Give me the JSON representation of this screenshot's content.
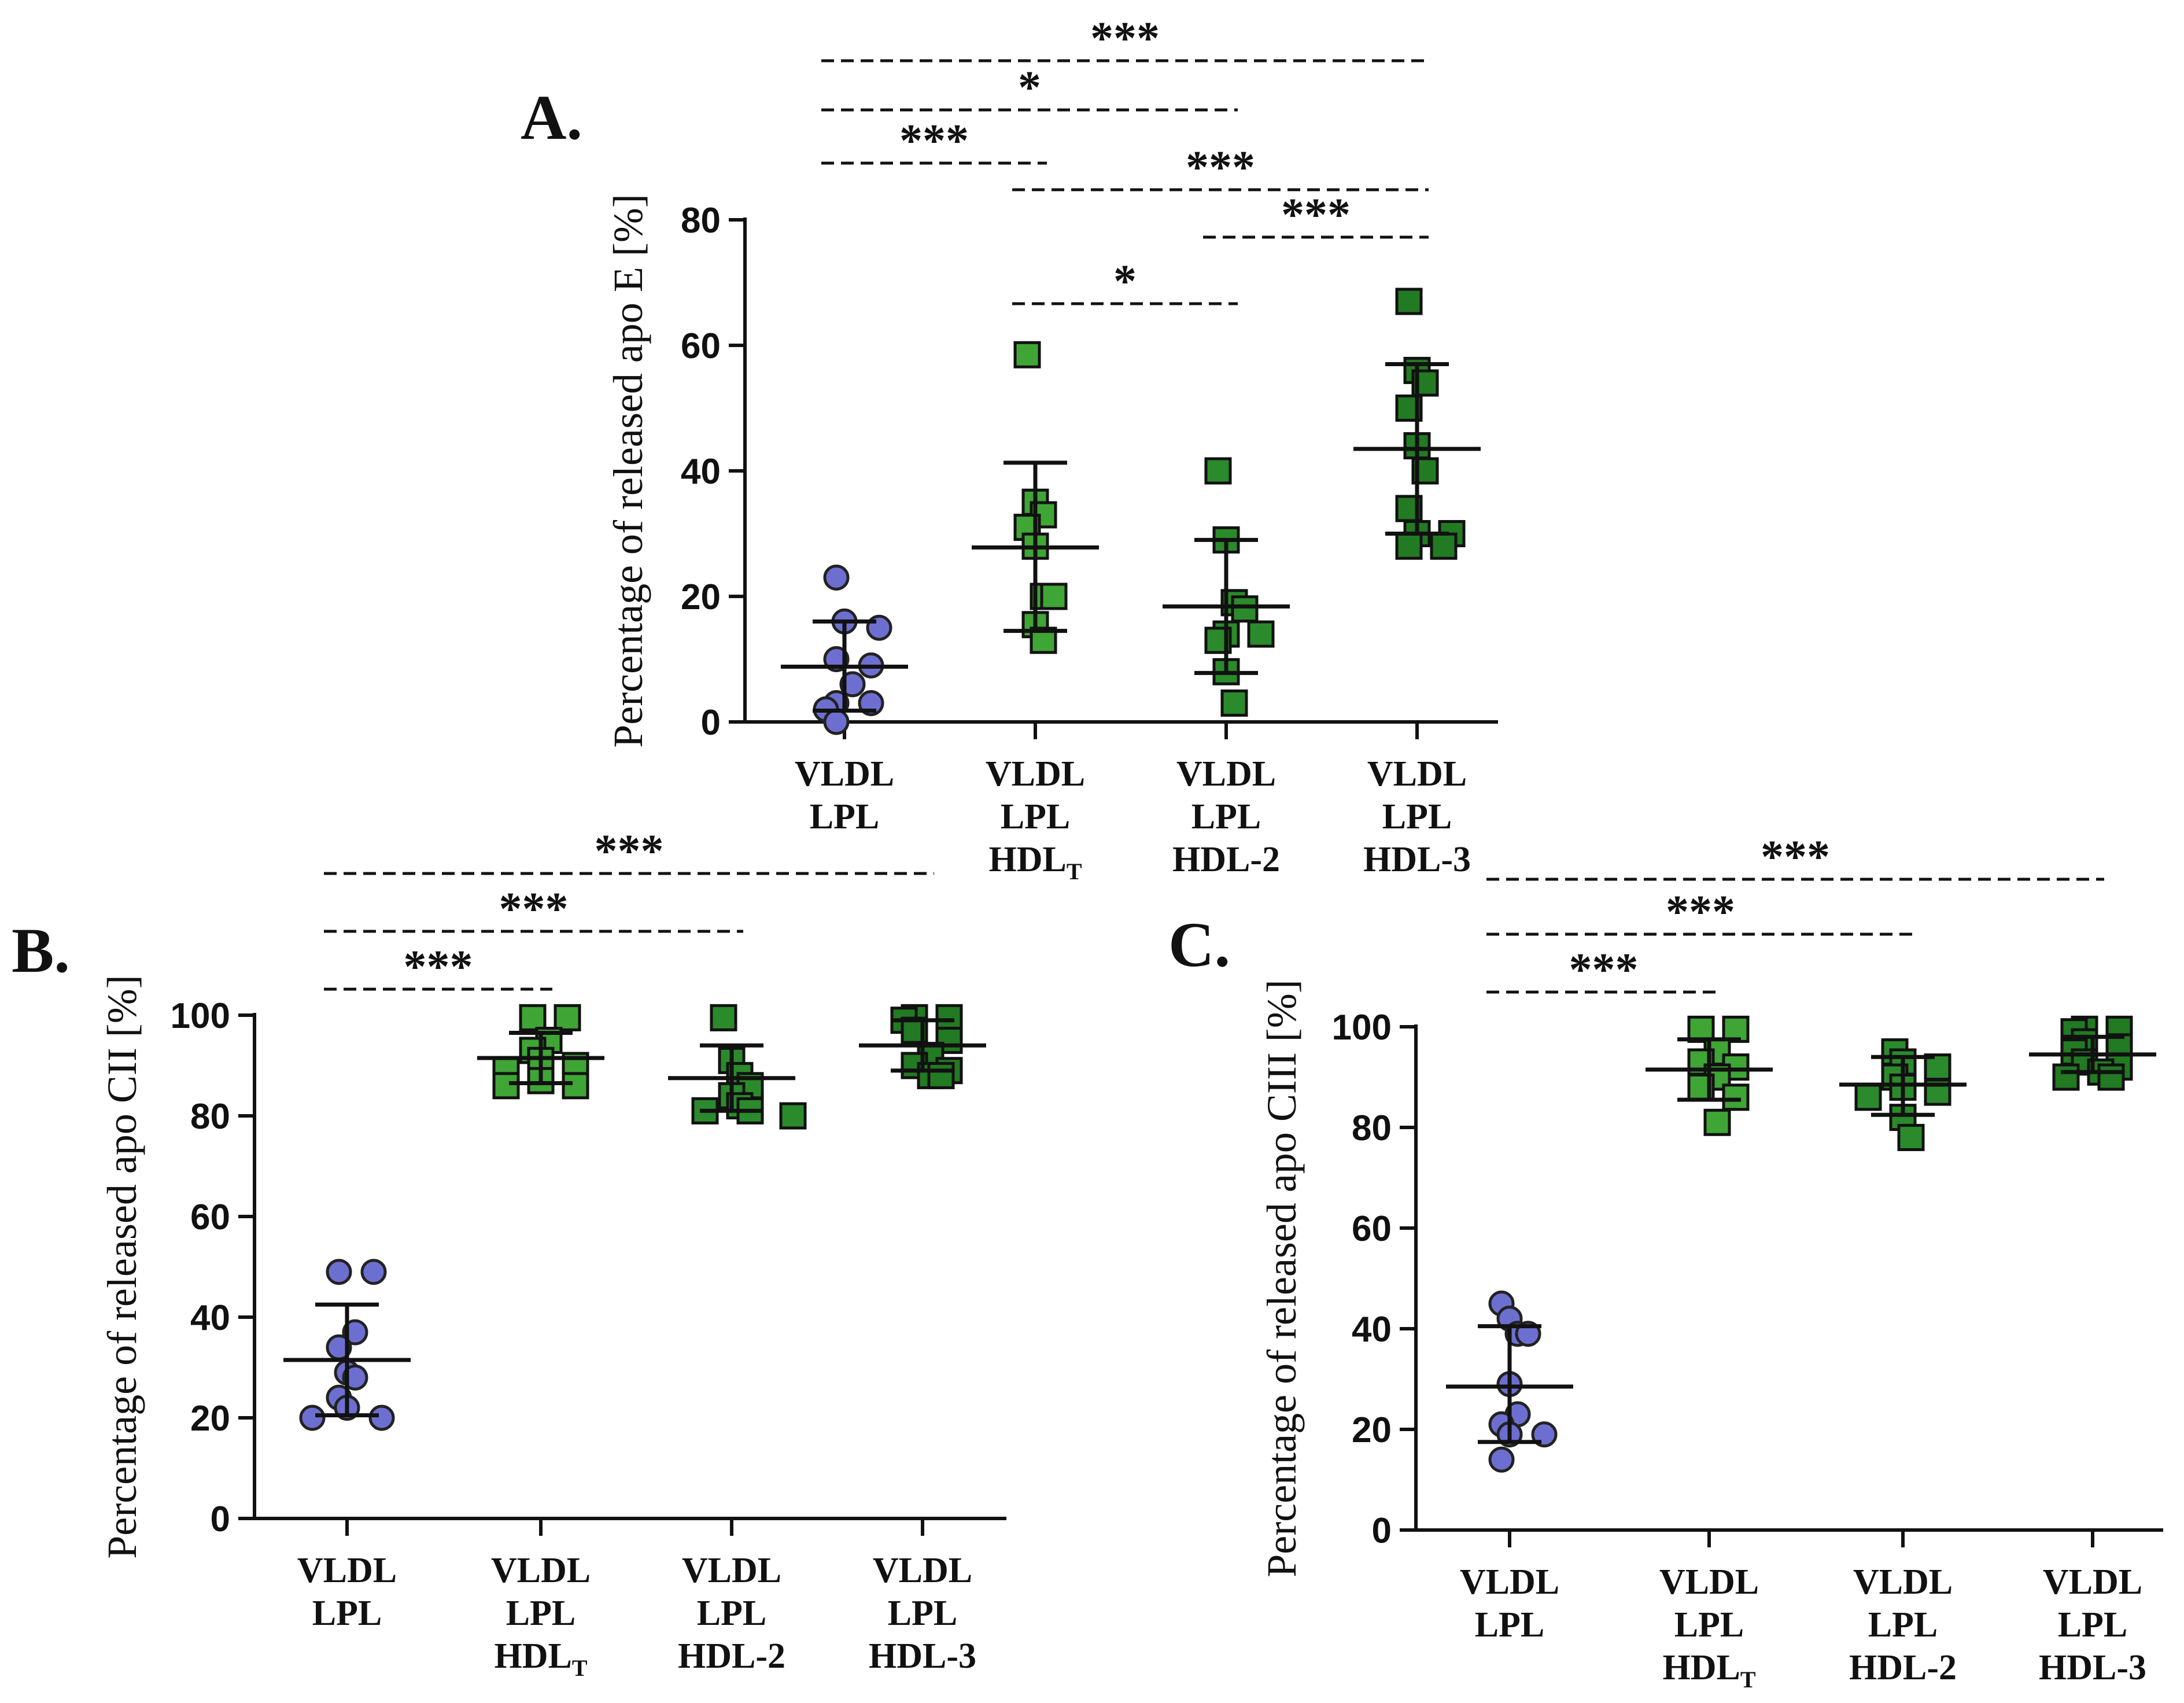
{
  "chart_data": [
    {
      "panel": "A.",
      "type": "scatter",
      "ylabel": "Percentage of released apo E [%]",
      "ylim": [
        0,
        80
      ],
      "yticks": [
        "0",
        "20",
        "40",
        "60",
        "80"
      ],
      "groups": [
        {
          "lines": [
            "VLDL",
            "LPL"
          ],
          "sub": "",
          "marker": "circle",
          "color": "#6d6fd0",
          "mean": 8.8,
          "sd_low": 1.8,
          "sd_high": 16.0,
          "values": [
            23,
            16,
            15,
            10,
            9,
            6,
            3,
            3,
            2,
            0
          ]
        },
        {
          "lines": [
            "VLDL",
            "LPL",
            "HDL"
          ],
          "sub": "T",
          "marker": "square",
          "color": "#3fa535",
          "mean": 27.8,
          "sd_low": 14.5,
          "sd_high": 41.3,
          "values": [
            58.5,
            35,
            33,
            31,
            28,
            20,
            20,
            15.5,
            13
          ]
        },
        {
          "lines": [
            "VLDL",
            "LPL",
            "HDL-2"
          ],
          "sub": "",
          "marker": "square",
          "color": "#2b8a2b",
          "mean": 18.4,
          "sd_low": 7.8,
          "sd_high": 29.0,
          "values": [
            40,
            29,
            19,
            18,
            14,
            14,
            13,
            8,
            3
          ]
        },
        {
          "lines": [
            "VLDL",
            "LPL",
            "HDL-3"
          ],
          "sub": "",
          "marker": "square",
          "color": "#227a22",
          "mean": 43.5,
          "sd_low": 30.0,
          "sd_high": 57.0,
          "values": [
            67,
            56,
            54,
            50,
            44,
            40,
            34,
            30,
            30,
            28,
            28
          ]
        }
      ],
      "significance": [
        {
          "from": 0,
          "to": 3,
          "label": "***"
        },
        {
          "from": 0,
          "to": 2,
          "label": "*"
        },
        {
          "from": 0,
          "to": 1,
          "label": "***"
        },
        {
          "from": 1,
          "to": 3,
          "label": "***"
        },
        {
          "from": 2,
          "to": 3,
          "label": "***"
        },
        {
          "from": 1,
          "to": 2,
          "label": "*"
        }
      ]
    },
    {
      "panel": "B.",
      "type": "scatter",
      "ylabel": "Percentage of released apo CII [%]",
      "ylim": [
        0,
        100
      ],
      "yticks": [
        "0",
        "20",
        "40",
        "60",
        "80",
        "100"
      ],
      "groups": [
        {
          "lines": [
            "VLDL",
            "LPL"
          ],
          "sub": "",
          "marker": "circle",
          "color": "#6d6fd0",
          "mean": 31.5,
          "sd_low": 20.5,
          "sd_high": 42.5,
          "values": [
            49,
            49,
            37,
            34,
            29,
            28,
            24,
            22,
            20,
            20
          ]
        },
        {
          "lines": [
            "VLDL",
            "LPL",
            "HDL"
          ],
          "sub": "T",
          "marker": "square",
          "color": "#3fa535",
          "mean": 91.5,
          "sd_low": 86.5,
          "sd_high": 96.5,
          "values": [
            99.5,
            99.5,
            95,
            93,
            91,
            90,
            89,
            87,
            86,
            86
          ]
        },
        {
          "lines": [
            "VLDL",
            "LPL",
            "HDL-2"
          ],
          "sub": "",
          "marker": "square",
          "color": "#2b8a2b",
          "mean": 87.5,
          "sd_low": 81,
          "sd_high": 94,
          "values": [
            99.5,
            91,
            88,
            86,
            84,
            82,
            81,
            81,
            80
          ]
        },
        {
          "lines": [
            "VLDL",
            "LPL",
            "HDL-3"
          ],
          "sub": "",
          "marker": "square",
          "color": "#227a22",
          "mean": 94,
          "sd_low": 89,
          "sd_high": 99,
          "values": [
            99.5,
            99.5,
            99,
            97,
            95,
            92,
            90,
            89,
            88,
            88
          ]
        }
      ],
      "significance": [
        {
          "from": 0,
          "to": 3,
          "label": "***"
        },
        {
          "from": 0,
          "to": 2,
          "label": "***"
        },
        {
          "from": 0,
          "to": 1,
          "label": "***"
        }
      ]
    },
    {
      "panel": "C.",
      "type": "scatter",
      "ylabel": "Percentage of released apo CIII [%]",
      "ylim": [
        0,
        100
      ],
      "yticks": [
        "0",
        "20",
        "40",
        "60",
        "80",
        "100"
      ],
      "groups": [
        {
          "lines": [
            "VLDL",
            "LPL"
          ],
          "sub": "",
          "marker": "circle",
          "color": "#6d6fd0",
          "mean": 28.5,
          "sd_low": 17.5,
          "sd_high": 40.5,
          "values": [
            45,
            42,
            39,
            39,
            29,
            23,
            21,
            19,
            19,
            14
          ]
        },
        {
          "lines": [
            "VLDL",
            "LPL",
            "HDL"
          ],
          "sub": "T",
          "marker": "square",
          "color": "#3fa535",
          "mean": 91.5,
          "sd_low": 85.5,
          "sd_high": 97.5,
          "values": [
            99.5,
            99.5,
            95,
            93,
            92,
            90,
            88,
            86,
            81
          ]
        },
        {
          "lines": [
            "VLDL",
            "LPL",
            "HDL-2"
          ],
          "sub": "",
          "marker": "square",
          "color": "#2b8a2b",
          "mean": 88.5,
          "sd_low": 82.5,
          "sd_high": 94,
          "values": [
            95,
            93,
            92,
            90,
            88,
            87,
            86,
            82,
            78
          ]
        },
        {
          "lines": [
            "VLDL",
            "LPL",
            "HDL-3"
          ],
          "sub": "",
          "marker": "square",
          "color": "#227a22",
          "mean": 94.5,
          "sd_low": 91,
          "sd_high": 98,
          "values": [
            99.5,
            99.5,
            99,
            97,
            96,
            95,
            93,
            92,
            91,
            90,
            90
          ]
        }
      ],
      "significance": [
        {
          "from": 0,
          "to": 3,
          "label": "***"
        },
        {
          "from": 0,
          "to": 2,
          "label": "***"
        },
        {
          "from": 0,
          "to": 1,
          "label": "***"
        }
      ]
    }
  ]
}
